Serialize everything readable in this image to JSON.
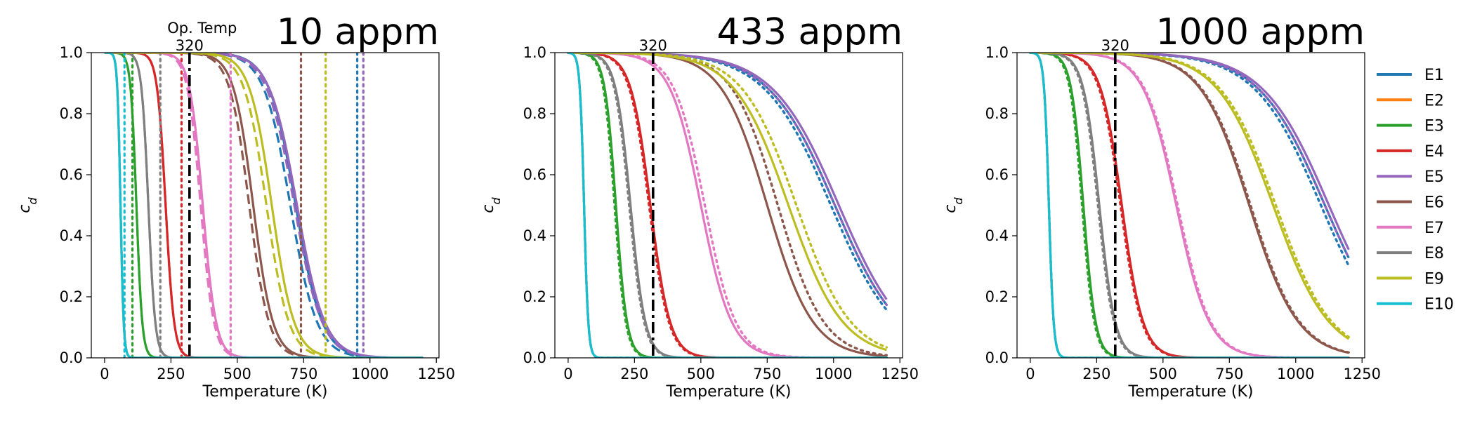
{
  "xlabel": "Temperature (K)",
  "ylabel": "c_d",
  "operating_temperature": {
    "label": "Op. Temp",
    "value": 320,
    "value_label": "320"
  },
  "legend": [
    "E1",
    "E2",
    "E3",
    "E4",
    "E5",
    "E6",
    "E7",
    "E8",
    "E9",
    "E10"
  ],
  "colors": {
    "E1": "#1f77b4",
    "E2": "#ff7f0e",
    "E3": "#2ca02c",
    "E4": "#d62728",
    "E5": "#9467bd",
    "E6": "#8c564b",
    "E7": "#e377c2",
    "E8": "#7f7f7f",
    "E9": "#bcbd22",
    "E10": "#17becf",
    "op_line": "#000000"
  },
  "chart_data": [
    {
      "type": "line",
      "title": "10 appm",
      "xlabel": "Temperature (K)",
      "ylabel": "c_d",
      "xlim": [
        -50,
        1260
      ],
      "ylim": [
        0,
        1.0
      ],
      "x_ticks": [
        0,
        250,
        500,
        750,
        1000,
        1250
      ],
      "y_ticks": [
        0.0,
        0.2,
        0.4,
        0.6,
        0.8,
        1.0
      ],
      "x_range": [
        0,
        1200
      ],
      "grid": false,
      "op_temp_annotation": "Op. Temp",
      "series": [
        {
          "name": "E1",
          "midpoint": 720,
          "width": 50,
          "dashed_midpoint": 700,
          "dotted_vline": 952
        },
        {
          "name": "E2",
          "midpoint": 60,
          "width": 6,
          "dashed_midpoint": 60
        },
        {
          "name": "E3",
          "midpoint": 120,
          "width": 11,
          "dashed_midpoint": 120,
          "dotted_vline": 105
        },
        {
          "name": "E4",
          "midpoint": 230,
          "width": 16,
          "dashed_midpoint": 230,
          "dotted_vline": 290
        },
        {
          "name": "E5",
          "midpoint": 725,
          "width": 52,
          "dashed_midpoint": 715,
          "dotted_vline": 975
        },
        {
          "name": "E6",
          "midpoint": 560,
          "width": 37,
          "dashed_midpoint": 545,
          "dotted_vline": 740
        },
        {
          "name": "E7",
          "midpoint": 370,
          "width": 25,
          "dashed_midpoint": 362,
          "dotted_vline": 475
        },
        {
          "name": "E8",
          "midpoint": 165,
          "width": 13,
          "dashed_midpoint": 165,
          "dotted_vline": 210
        },
        {
          "name": "E9",
          "midpoint": 630,
          "width": 42,
          "dashed_midpoint": 610,
          "dotted_vline": 833
        },
        {
          "name": "E10",
          "midpoint": 60,
          "width": 6,
          "dashed_midpoint": 60,
          "dotted_vline": 75
        }
      ]
    },
    {
      "type": "line",
      "title": "433 appm",
      "xlabel": "Temperature (K)",
      "ylabel": "c_d",
      "xlim": [
        -50,
        1260
      ],
      "ylim": [
        0,
        1.0
      ],
      "x_ticks": [
        0,
        250,
        500,
        750,
        1000,
        1250
      ],
      "y_ticks": [
        0.0,
        0.2,
        0.4,
        0.6,
        0.8,
        1.0
      ],
      "x_range": [
        0,
        1200
      ],
      "grid": false,
      "series": [
        {
          "name": "E1",
          "midpoint": 1005,
          "width": 125,
          "dotted_midpoint": 990
        },
        {
          "name": "E2",
          "midpoint": 60,
          "width": 8,
          "dotted_midpoint": 60
        },
        {
          "name": "E3",
          "midpoint": 180,
          "width": 21,
          "dotted_midpoint": 175
        },
        {
          "name": "E4",
          "midpoint": 310,
          "width": 37,
          "dotted_midpoint": 305
        },
        {
          "name": "E5",
          "midpoint": 1020,
          "width": 125,
          "dotted_midpoint": 1005
        },
        {
          "name": "E6",
          "midpoint": 750,
          "width": 86,
          "dotted_midpoint": 790
        },
        {
          "name": "E7",
          "midpoint": 500,
          "width": 58,
          "dotted_midpoint": 515
        },
        {
          "name": "E8",
          "midpoint": 235,
          "width": 28,
          "dotted_midpoint": 230
        },
        {
          "name": "E9",
          "midpoint": 830,
          "width": 102,
          "dotted_midpoint": 860
        },
        {
          "name": "E10",
          "midpoint": 60,
          "width": 8,
          "dotted_midpoint": 60
        }
      ]
    },
    {
      "type": "line",
      "title": "1000 appm",
      "xlabel": "Temperature (K)",
      "ylabel": "c_d",
      "xlim": [
        -50,
        1260
      ],
      "ylim": [
        0,
        1.0
      ],
      "x_ticks": [
        0,
        250,
        500,
        750,
        1000,
        1250
      ],
      "y_ticks": [
        0.0,
        0.2,
        0.4,
        0.6,
        0.8,
        1.0
      ],
      "x_range": [
        0,
        1200
      ],
      "grid": false,
      "series": [
        {
          "name": "E1",
          "midpoint": 1110,
          "width": 125,
          "dotted_midpoint": 1095
        },
        {
          "name": "E2",
          "midpoint": 70,
          "width": 9,
          "dotted_midpoint": 70
        },
        {
          "name": "E3",
          "midpoint": 200,
          "width": 23,
          "dotted_midpoint": 195
        },
        {
          "name": "E4",
          "midpoint": 345,
          "width": 40,
          "dotted_midpoint": 340
        },
        {
          "name": "E5",
          "midpoint": 1125,
          "width": 125,
          "dotted_midpoint": 1110
        },
        {
          "name": "E6",
          "midpoint": 825,
          "width": 92,
          "dotted_midpoint": 830
        },
        {
          "name": "E7",
          "midpoint": 550,
          "width": 62,
          "dotted_midpoint": 555
        },
        {
          "name": "E8",
          "midpoint": 260,
          "width": 30,
          "dotted_midpoint": 255
        },
        {
          "name": "E9",
          "midpoint": 915,
          "width": 105,
          "dotted_midpoint": 925
        },
        {
          "name": "E10",
          "midpoint": 70,
          "width": 9,
          "dotted_midpoint": 70
        }
      ]
    }
  ]
}
